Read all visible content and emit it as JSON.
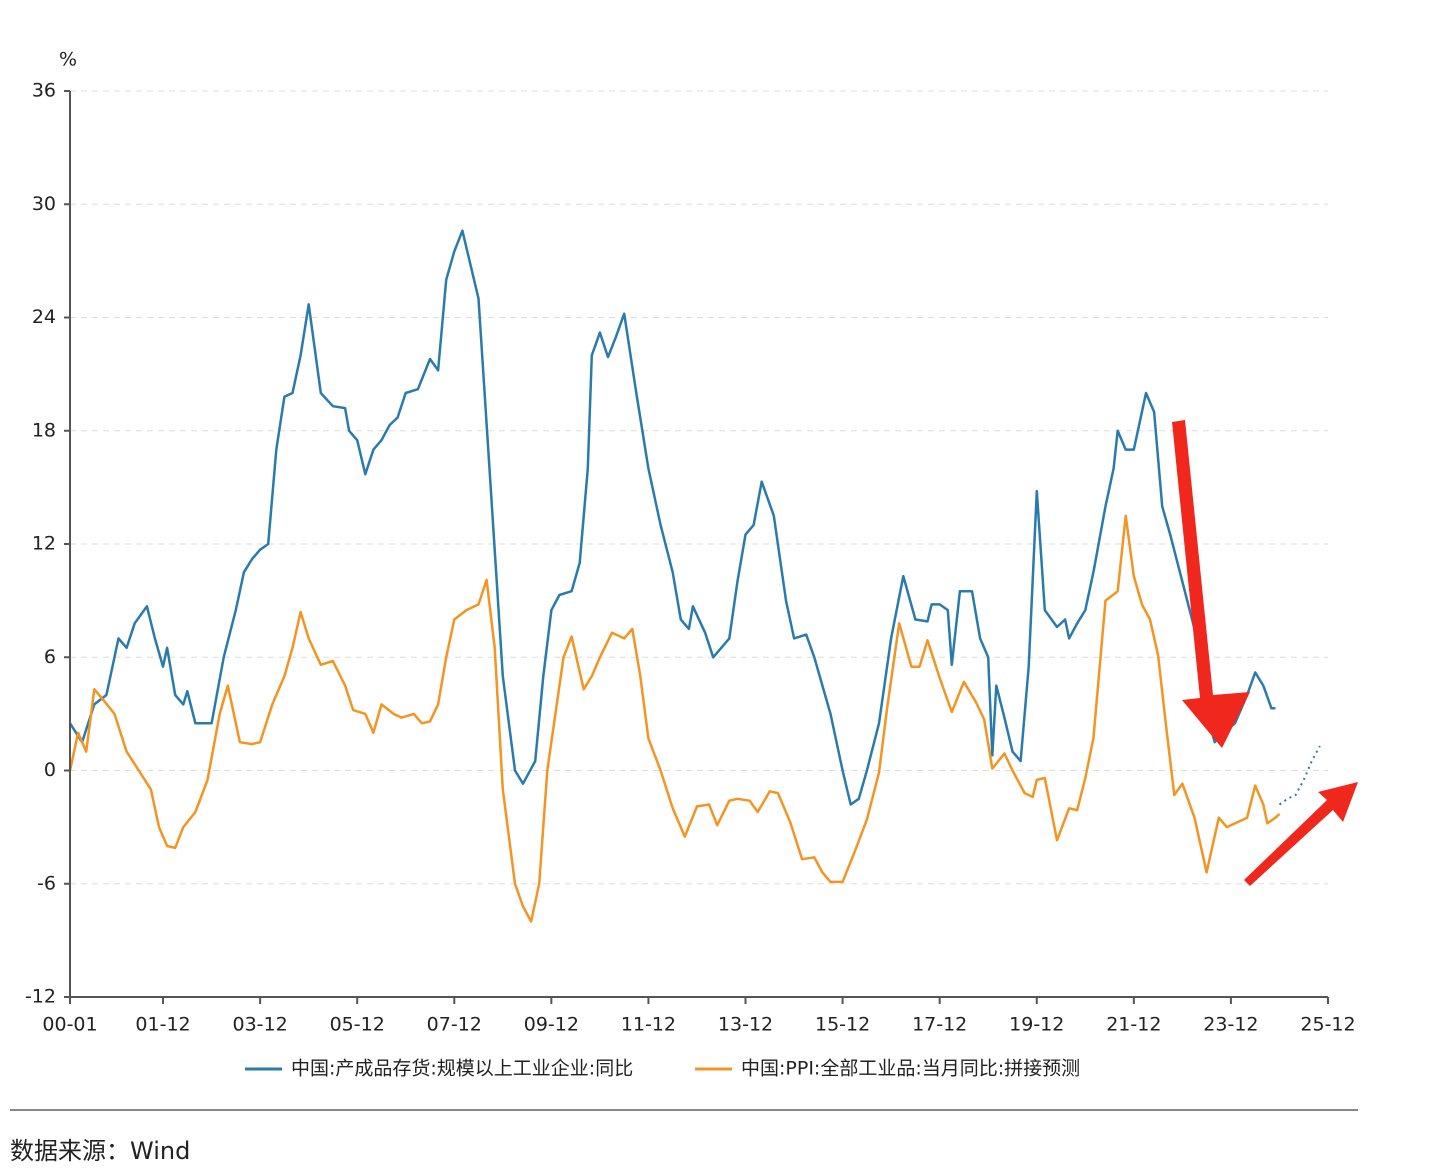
{
  "chart_data": {
    "type": "line",
    "y_label": "%",
    "ylim": [
      -12,
      36
    ],
    "yticks": [
      -12,
      -6,
      0,
      6,
      12,
      18,
      24,
      30,
      36
    ],
    "xlim": [
      "00-01",
      "25-12"
    ],
    "xticks": [
      "00-01",
      "01-12",
      "03-12",
      "05-12",
      "07-12",
      "09-12",
      "11-12",
      "13-12",
      "15-12",
      "17-12",
      "19-12",
      "21-12",
      "23-12",
      "25-12"
    ],
    "grid": true,
    "legend": "bottom",
    "source": "数据来源：Wind",
    "series": [
      {
        "name": "中国:产成品存货:规模以上工业企业:同比",
        "color": "#2a7bab",
        "x": [
          "00-01",
          "00-04",
          "00-07",
          "00-10",
          "01-01",
          "01-03",
          "01-05",
          "01-08",
          "01-10",
          "01-12",
          "02-01",
          "02-03",
          "02-05",
          "02-06",
          "02-08",
          "02-10",
          "02-12",
          "03-03",
          "03-06",
          "03-08",
          "03-10",
          "03-12",
          "04-02",
          "04-04",
          "04-06",
          "04-08",
          "04-10",
          "04-12",
          "05-03",
          "05-06",
          "05-09",
          "05-10",
          "05-12",
          "06-02",
          "06-04",
          "06-06",
          "06-08",
          "06-10",
          "06-12",
          "07-03",
          "07-06",
          "07-08",
          "07-10",
          "07-12",
          "08-02",
          "08-06",
          "08-09",
          "08-12",
          "09-03",
          "09-05",
          "09-08",
          "09-10",
          "09-12",
          "10-02",
          "10-05",
          "10-07",
          "10-09",
          "10-10",
          "10-12",
          "11-02",
          "11-04",
          "11-06",
          "11-09",
          "11-12",
          "12-03",
          "12-06",
          "12-08",
          "12-10",
          "12-11",
          "13-02",
          "13-04",
          "13-08",
          "13-10",
          "13-12",
          "14-02",
          "14-04",
          "14-07",
          "14-10",
          "14-12",
          "15-03",
          "15-05",
          "15-07",
          "15-09",
          "15-12",
          "16-02",
          "16-04",
          "16-06",
          "16-09",
          "16-12",
          "17-03",
          "17-06",
          "17-09",
          "17-10",
          "17-12",
          "18-02",
          "18-03",
          "18-05",
          "18-08",
          "18-10",
          "18-12",
          "19-01",
          "19-02",
          "19-04",
          "19-06",
          "19-08",
          "19-10",
          "19-12",
          "20-02",
          "20-05",
          "20-07",
          "20-08",
          "20-10",
          "20-12",
          "21-02",
          "21-05",
          "21-07",
          "21-08",
          "21-10",
          "21-12",
          "22-03",
          "22-05",
          "22-07",
          "22-09",
          "22-12",
          "23-03",
          "23-06",
          "23-08",
          "23-10",
          "24-01",
          "24-04",
          "24-06",
          "24-08",
          "24-10",
          "24-11"
        ],
        "values": [
          2.5,
          1.5,
          3.5,
          4,
          7,
          6.5,
          7.8,
          8.7,
          7,
          5.5,
          6.5,
          4,
          3.5,
          4.2,
          2.5,
          2.5,
          2.5,
          6,
          8.5,
          10.5,
          11.2,
          11.7,
          12,
          17,
          19.8,
          20,
          22,
          24.7,
          20,
          19.3,
          19.2,
          18,
          17.5,
          15.7,
          17,
          17.5,
          18.3,
          18.7,
          20,
          20.2,
          21.8,
          21.2,
          26,
          27.5,
          28.6,
          25,
          15,
          5,
          0,
          -0.7,
          0.5,
          5,
          8.5,
          9.3,
          9.5,
          11,
          16,
          22,
          23.2,
          21.9,
          23,
          24.2,
          20,
          16,
          13,
          10.5,
          8,
          7.5,
          8.7,
          7.3,
          6,
          7,
          10,
          12.5,
          13,
          15.3,
          13.5,
          9,
          7,
          7.2,
          6,
          4.5,
          3,
          0,
          -1.8,
          -1.5,
          0,
          2.5,
          7,
          10.3,
          8,
          7.9,
          8.8,
          8.8,
          8.5,
          5.6,
          9.5,
          9.5,
          7,
          6,
          0.8,
          4.5,
          2.8,
          1,
          0.5,
          5.5,
          14.8,
          8.5,
          7.6,
          8,
          7,
          7.8,
          8.5,
          10.5,
          14,
          16,
          18,
          17,
          17,
          20,
          19,
          14,
          12.5,
          10,
          7.5,
          3,
          1.5,
          2,
          2.5,
          4,
          5.2,
          4.5,
          3.3,
          3.3
        ]
      },
      {
        "name": "中国:PPI:全部工业品:当月同比:拼接预测",
        "color": "#f39423",
        "x": [
          "00-01",
          "00-03",
          "00-05",
          "00-07",
          "00-09",
          "00-12",
          "01-03",
          "01-06",
          "01-09",
          "01-11",
          "02-01",
          "02-03",
          "02-05",
          "02-08",
          "02-11",
          "03-02",
          "03-04",
          "03-07",
          "03-10",
          "03-12",
          "04-03",
          "04-06",
          "04-08",
          "04-10",
          "04-12",
          "05-03",
          "05-06",
          "05-09",
          "05-11",
          "06-02",
          "06-04",
          "06-06",
          "06-09",
          "06-11",
          "07-02",
          "07-04",
          "07-06",
          "07-08",
          "07-10",
          "07-12",
          "08-03",
          "08-06",
          "08-08",
          "08-10",
          "08-12",
          "09-03",
          "09-05",
          "09-07",
          "09-09",
          "09-11",
          "10-03",
          "10-05",
          "10-08",
          "10-10",
          "10-12",
          "11-03",
          "11-06",
          "11-08",
          "11-10",
          "11-12",
          "12-03",
          "12-06",
          "12-09",
          "12-12",
          "13-03",
          "13-05",
          "13-08",
          "13-10",
          "14-01",
          "14-03",
          "14-06",
          "14-08",
          "14-11",
          "15-02",
          "15-05",
          "15-07",
          "15-09",
          "15-12",
          "16-03",
          "16-06",
          "16-09",
          "16-11",
          "17-02",
          "17-05",
          "17-07",
          "17-09",
          "17-12",
          "18-03",
          "18-06",
          "18-09",
          "18-11",
          "19-01",
          "19-04",
          "19-06",
          "19-09",
          "19-11",
          "19-12",
          "20-02",
          "20-05",
          "20-08",
          "20-10",
          "20-12",
          "21-02",
          "21-05",
          "21-08",
          "21-10",
          "21-12",
          "22-02",
          "22-04",
          "22-06",
          "22-08",
          "22-10",
          "22-12",
          "23-03",
          "23-06",
          "23-09",
          "23-11",
          "24-02",
          "24-04",
          "24-06",
          "24-08",
          "24-09",
          "24-11",
          "24-12"
        ],
        "values": [
          0,
          2,
          1,
          4.3,
          3.8,
          3,
          1,
          0,
          -1,
          -3,
          -4,
          -4.1,
          -3,
          -2.2,
          -0.5,
          3,
          4.5,
          1.5,
          1.4,
          1.5,
          3.5,
          5,
          6.5,
          8.4,
          7,
          5.6,
          5.8,
          4.5,
          3.2,
          3,
          2,
          3.5,
          3,
          2.8,
          3,
          2.5,
          2.6,
          3.5,
          6,
          8,
          8.5,
          8.8,
          10.1,
          6.5,
          -1,
          -6,
          -7.2,
          -8,
          -6,
          0,
          6,
          7.1,
          4.3,
          5,
          6,
          7.3,
          7,
          7.5,
          5,
          1.7,
          0,
          -2,
          -3.5,
          -1.9,
          -1.8,
          -2.9,
          -1.6,
          -1.5,
          -1.6,
          -2.2,
          -1.1,
          -1.2,
          -2.7,
          -4.7,
          -4.6,
          -5.4,
          -5.9,
          -5.9,
          -4.3,
          -2.6,
          -0.1,
          3.3,
          7.8,
          5.5,
          5.5,
          6.9,
          4.9,
          3.1,
          4.7,
          3.6,
          2.7,
          0.1,
          0.9,
          0,
          -1.2,
          -1.4,
          -0.5,
          -0.4,
          -3.7,
          -2,
          -2.1,
          -0.4,
          1.7,
          9,
          9.5,
          13.5,
          10.3,
          8.8,
          8,
          6.1,
          2.3,
          -1.3,
          -0.7,
          -2.5,
          -5.4,
          -2.5,
          -3,
          -2.7,
          -2.5,
          -0.8,
          -1.8,
          -2.8,
          -2.5,
          -2.3
        ]
      },
      {
        "color": "#2a7bab",
        "dashed": true,
        "x": [
          "24-12",
          "25-02",
          "25-04",
          "25-06",
          "25-08",
          "25-10"
        ],
        "values": [
          -1.8,
          -1.5,
          -1.3,
          -0.5,
          0.5,
          1.3
        ]
      }
    ]
  }
}
